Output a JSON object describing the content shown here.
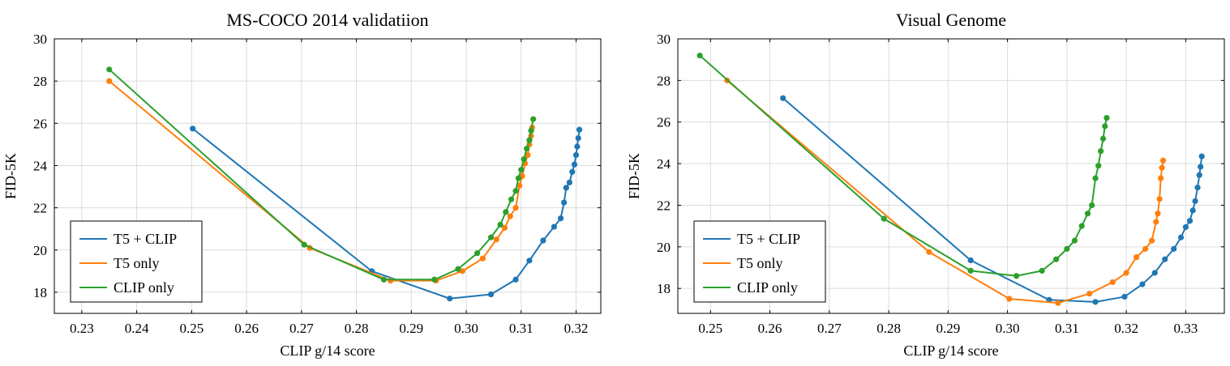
{
  "chart_data": [
    {
      "type": "line",
      "title": "MS-COCO 2014 validatiion",
      "xlabel": "CLIP g/14 score",
      "ylabel": "FID-5K",
      "xlim": [
        0.225,
        0.3245
      ],
      "ylim": [
        17,
        30
      ],
      "xticks": [
        0.23,
        0.24,
        0.25,
        0.26,
        0.27,
        0.28,
        0.29,
        0.3,
        0.31,
        0.32
      ],
      "xtick_labels": [
        "0.23",
        "0.24",
        "0.25",
        "0.26",
        "0.27",
        "0.28",
        "0.29",
        "0.30",
        "0.31",
        "0.32"
      ],
      "yticks": [
        18,
        20,
        22,
        24,
        26,
        28,
        30
      ],
      "ytick_labels": [
        "18",
        "20",
        "22",
        "24",
        "26",
        "28",
        "30"
      ],
      "grid": true,
      "legend": "bottom-left",
      "series": [
        {
          "name": "T5 + CLIP",
          "color": "#1f77b4",
          "x": [
            0.2502,
            0.2828,
            0.297,
            0.3045,
            0.309,
            0.3115,
            0.314,
            0.316,
            0.3172,
            0.3178,
            0.3182,
            0.3188,
            0.3193,
            0.3197,
            0.32,
            0.3202,
            0.3204,
            0.3206
          ],
          "y": [
            25.75,
            19.0,
            17.7,
            17.9,
            18.6,
            19.5,
            20.45,
            21.1,
            21.5,
            22.25,
            22.95,
            23.2,
            23.7,
            24.05,
            24.5,
            24.9,
            25.3,
            25.7
          ]
        },
        {
          "name": "T5 only",
          "color": "#ff7f0e",
          "x": [
            0.235,
            0.2715,
            0.2862,
            0.2945,
            0.2993,
            0.303,
            0.3055,
            0.307,
            0.308,
            0.309,
            0.3097,
            0.3102,
            0.3107,
            0.3112,
            0.3115,
            0.3118,
            0.312
          ],
          "y": [
            28.0,
            20.1,
            18.55,
            18.55,
            19.0,
            19.6,
            20.5,
            21.05,
            21.6,
            22.0,
            23.05,
            23.5,
            24.1,
            24.5,
            25.0,
            25.4,
            25.8
          ]
        },
        {
          "name": "CLIP only",
          "color": "#2ca02c",
          "x": [
            0.235,
            0.2705,
            0.285,
            0.2942,
            0.2985,
            0.302,
            0.3045,
            0.3062,
            0.3072,
            0.3082,
            0.309,
            0.3095,
            0.31,
            0.3105,
            0.311,
            0.3115,
            0.3118,
            0.3122
          ],
          "y": [
            28.55,
            20.25,
            18.6,
            18.6,
            19.1,
            19.85,
            20.6,
            21.2,
            21.8,
            22.4,
            22.8,
            23.4,
            23.8,
            24.3,
            24.8,
            25.2,
            25.65,
            26.2
          ]
        }
      ]
    },
    {
      "type": "line",
      "title": "Visual Genome",
      "xlabel": "CLIP g/14 score",
      "ylabel": "FID-5K",
      "xlim": [
        0.2445,
        0.3365
      ],
      "ylim": [
        16.8,
        30
      ],
      "xticks": [
        0.25,
        0.26,
        0.27,
        0.28,
        0.29,
        0.3,
        0.31,
        0.32,
        0.33
      ],
      "xtick_labels": [
        "0.25",
        "0.26",
        "0.27",
        "0.28",
        "0.29",
        "0.30",
        "0.31",
        "0.32",
        "0.33"
      ],
      "yticks": [
        18,
        20,
        22,
        24,
        26,
        28,
        30
      ],
      "ytick_labels": [
        "18",
        "20",
        "22",
        "24",
        "26",
        "28",
        "30"
      ],
      "grid": true,
      "legend": "bottom-left",
      "series": [
        {
          "name": "T5 + CLIP",
          "color": "#1f77b4",
          "x": [
            0.2622,
            0.2938,
            0.307,
            0.3148,
            0.3197,
            0.3227,
            0.3248,
            0.3265,
            0.328,
            0.3292,
            0.33,
            0.3307,
            0.3312,
            0.3316,
            0.332,
            0.3323,
            0.3325,
            0.3327
          ],
          "y": [
            27.15,
            19.35,
            17.45,
            17.35,
            17.6,
            18.2,
            18.75,
            19.4,
            19.9,
            20.45,
            20.95,
            21.25,
            21.75,
            22.2,
            22.85,
            23.45,
            23.85,
            24.35
          ]
        },
        {
          "name": "T5 only",
          "color": "#ff7f0e",
          "x": [
            0.2528,
            0.2868,
            0.3003,
            0.3085,
            0.3138,
            0.3177,
            0.32,
            0.3217,
            0.3232,
            0.3243,
            0.325,
            0.3253,
            0.3256,
            0.3258,
            0.326,
            0.3262
          ],
          "y": [
            28.0,
            19.75,
            17.5,
            17.3,
            17.75,
            18.3,
            18.75,
            19.5,
            19.9,
            20.3,
            21.2,
            21.6,
            22.3,
            23.3,
            23.8,
            24.15
          ]
        },
        {
          "name": "CLIP only",
          "color": "#2ca02c",
          "x": [
            0.2482,
            0.2792,
            0.2938,
            0.3015,
            0.3058,
            0.3082,
            0.31,
            0.3113,
            0.3125,
            0.3135,
            0.3142,
            0.3148,
            0.3153,
            0.3157,
            0.3161,
            0.3164,
            0.3167
          ],
          "y": [
            29.2,
            21.35,
            18.85,
            18.6,
            18.85,
            19.4,
            19.9,
            20.3,
            21.0,
            21.6,
            22.0,
            23.3,
            23.9,
            24.6,
            25.2,
            25.8,
            26.2
          ]
        }
      ]
    }
  ]
}
